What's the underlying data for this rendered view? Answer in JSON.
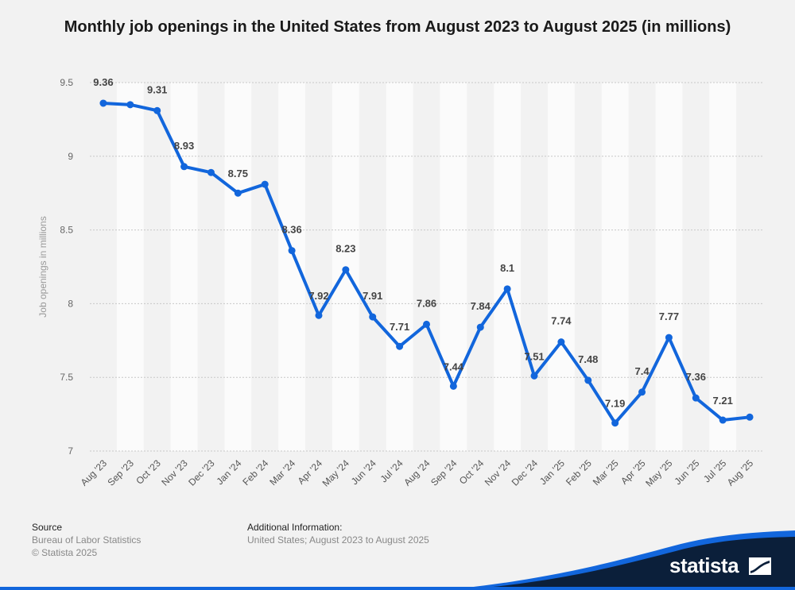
{
  "title": "Monthly job openings in the United States from August 2023 to August 2025 (in millions)",
  "chart_data": {
    "type": "line",
    "title": "Monthly job openings in the United States from August 2023 to August 2025 (in millions)",
    "ylabel": "Job openings in millions",
    "xlabel": "",
    "ylim": [
      7,
      9.5
    ],
    "yticks": [
      "9.5",
      "9",
      "8.5",
      "8",
      "7.5",
      "7"
    ],
    "grid": "horizontal dotted, alternating column shading",
    "categories": [
      "Aug '23",
      "Sep '23",
      "Oct '23",
      "Nov '23",
      "Dec '23",
      "Jan '24",
      "Feb '24",
      "Mar '24",
      "Apr '24",
      "May '24",
      "Jun '24",
      "Jul '24",
      "Aug '24",
      "Sep '24",
      "Oct '24",
      "Nov '24",
      "Dec '24",
      "Jan '25",
      "Feb '25",
      "Mar '25",
      "Apr '25",
      "May '25",
      "Jun '25",
      "Jul '25",
      "Aug '25"
    ],
    "series": [
      {
        "color": "#1266dc",
        "values": [
          9.36,
          9.35,
          9.31,
          8.93,
          8.89,
          8.75,
          8.81,
          8.36,
          7.92,
          8.23,
          7.91,
          7.71,
          7.86,
          7.44,
          7.84,
          8.1,
          7.51,
          7.74,
          7.48,
          7.19,
          7.4,
          7.77,
          7.36,
          7.21,
          7.23
        ],
        "data_labels": [
          "9.36",
          "",
          "9.31",
          "8.93",
          "",
          "8.75",
          "",
          "8.36",
          "7.92",
          "8.23",
          "7.91",
          "7.71",
          "7.86",
          "7.44",
          "7.84",
          "8.1",
          "7.51",
          "7.74",
          "7.48",
          "7.19",
          "7.4",
          "7.77",
          "7.36",
          "7.21",
          ""
        ]
      }
    ]
  },
  "footer": {
    "source_heading": "Source",
    "source_line1": "Bureau of Labor Statistics",
    "source_line2": "© Statista 2025",
    "info_heading": "Additional Information:",
    "info_text": "United States; August 2023 to August 2025"
  },
  "brand": {
    "name": "statista",
    "bg_color": "#0b1f3a",
    "accent_color": "#1266dc"
  }
}
